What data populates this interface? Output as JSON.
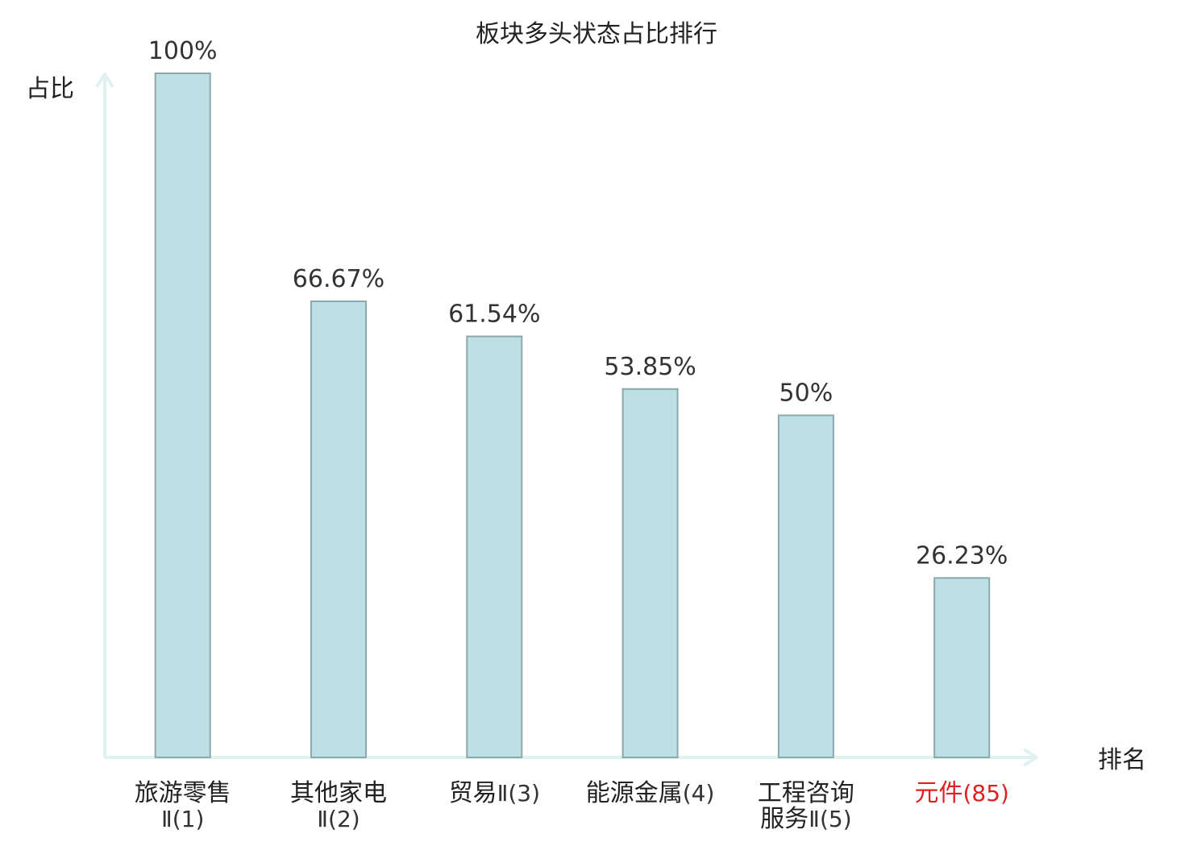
{
  "chart_data": {
    "type": "bar",
    "title": "板块多头状态占比排行",
    "ylabel": "占比",
    "xlabel": "排名",
    "ylim": [
      0,
      100
    ],
    "grid": false,
    "categories": [
      {
        "name": "旅游零售",
        "rank_suffix": "Ⅱ(1)",
        "highlight": false,
        "lines": [
          {
            "text": "旅游零售",
            "cls": "name"
          },
          {
            "text": "Ⅱ(1)",
            "cls": "rank"
          }
        ]
      },
      {
        "name": "其他家电",
        "rank_suffix": "Ⅱ(2)",
        "highlight": false,
        "lines": [
          {
            "text": "其他家电",
            "cls": "name"
          },
          {
            "text": "Ⅱ(2)",
            "cls": "rank"
          }
        ]
      },
      {
        "name": "贸易",
        "rank_suffix": "Ⅱ(3)",
        "highlight": false,
        "lines": [
          {
            "text": "贸易",
            "cls": "name",
            "inline": "Ⅱ(3)"
          }
        ]
      },
      {
        "name": "能源金属",
        "rank_suffix": "(4)",
        "highlight": false,
        "lines": [
          {
            "text": "能源金属",
            "cls": "name",
            "inline": "(4)"
          }
        ]
      },
      {
        "name": "工程咨询服务",
        "rank_suffix": "Ⅱ(5)",
        "highlight": false,
        "lines": [
          {
            "text": "工程咨询",
            "cls": "name"
          },
          {
            "text": "服务",
            "cls": "name",
            "inline": "Ⅱ(5)"
          }
        ]
      },
      {
        "name": "元件",
        "rank_suffix": "(85)",
        "highlight": true,
        "lines": [
          {
            "text": "元件",
            "cls": "name",
            "inline": "(85)"
          }
        ]
      }
    ],
    "values": [
      100,
      66.67,
      61.54,
      53.85,
      50,
      26.23
    ],
    "value_labels": [
      "100%",
      "66.67%",
      "61.54%",
      "53.85%",
      "50%",
      "26.23%"
    ],
    "colors": {
      "bar_fill": "#bce0e3",
      "bar_stroke": "#8aa9ad",
      "axis": "#dff2ef",
      "text": "#333333",
      "label_dark": "#222222",
      "highlight": "#e02020"
    }
  }
}
